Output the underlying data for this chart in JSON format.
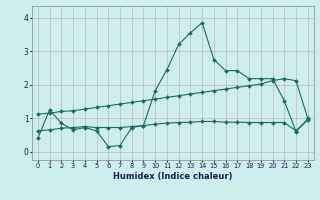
{
  "xlabel": "Humidex (Indice chaleur)",
  "bg_color": "#ceeeed",
  "grid_color": "#c0b8b8",
  "line_color": "#1a6b6b",
  "x_ticks": [
    0,
    1,
    2,
    3,
    4,
    5,
    6,
    7,
    8,
    9,
    10,
    11,
    12,
    13,
    14,
    15,
    16,
    17,
    18,
    19,
    20,
    21,
    22,
    23
  ],
  "y_ticks": [
    0,
    1,
    2,
    3,
    4
  ],
  "ylim": [
    -0.25,
    4.35
  ],
  "xlim": [
    -0.5,
    23.5
  ],
  "line1_y": [
    0.4,
    1.25,
    0.85,
    0.65,
    0.72,
    0.62,
    0.15,
    0.18,
    0.72,
    0.78,
    1.82,
    2.45,
    3.2,
    3.55,
    3.85,
    2.75,
    2.42,
    2.42,
    2.18,
    2.18,
    2.18,
    1.52,
    0.6,
    0.95
  ],
  "line2_y": [
    1.12,
    1.15,
    1.2,
    1.22,
    1.27,
    1.32,
    1.37,
    1.42,
    1.47,
    1.52,
    1.57,
    1.62,
    1.67,
    1.72,
    1.77,
    1.82,
    1.87,
    1.92,
    1.97,
    2.02,
    2.12,
    2.18,
    2.12,
    1.0
  ],
  "line3_y": [
    0.62,
    0.65,
    0.7,
    0.72,
    0.75,
    0.72,
    0.72,
    0.72,
    0.75,
    0.78,
    0.82,
    0.85,
    0.87,
    0.88,
    0.9,
    0.9,
    0.88,
    0.88,
    0.87,
    0.87,
    0.87,
    0.87,
    0.62,
    0.97
  ]
}
